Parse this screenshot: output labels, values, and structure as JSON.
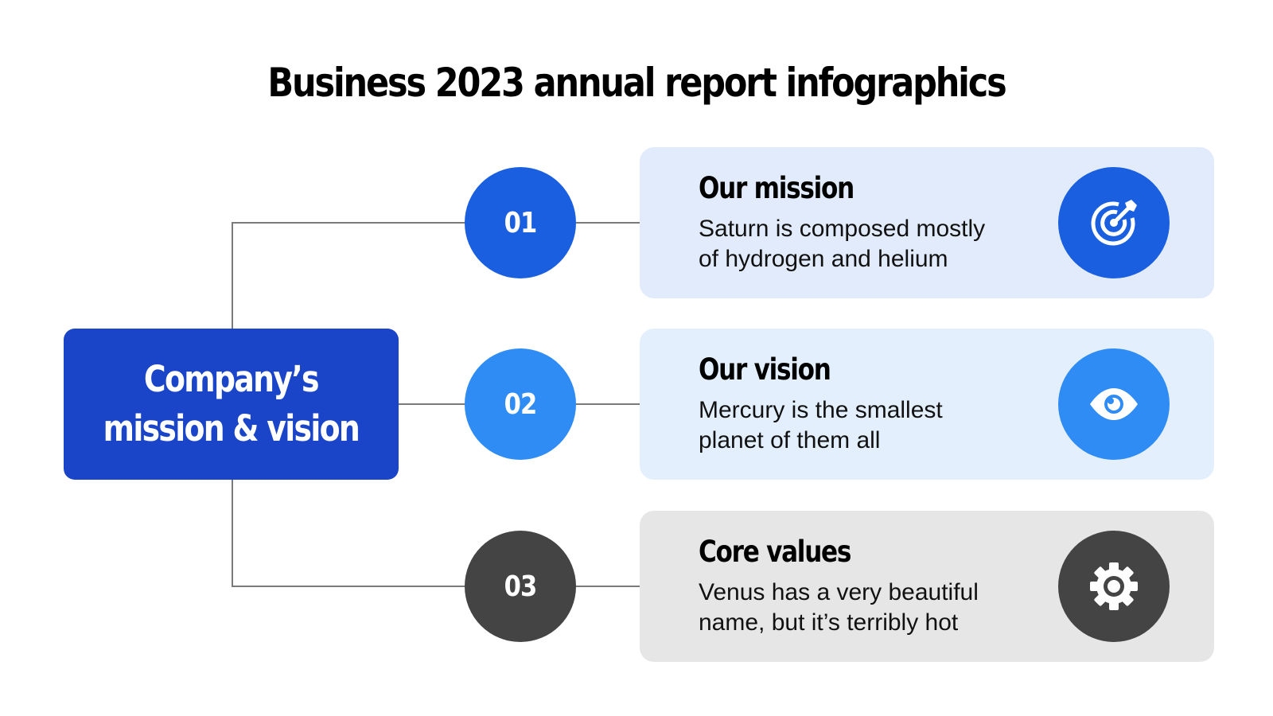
{
  "title": "Business 2023 annual report infographics",
  "hub": {
    "label": "Company’s\nmission & vision"
  },
  "items": [
    {
      "number": "01",
      "heading": "Our mission",
      "text": "Saturn is composed mostly\nof hydrogen and helium",
      "icon": "target-icon",
      "circle_color": "#1a5fe0",
      "card_color": "#e1ebfb"
    },
    {
      "number": "02",
      "heading": "Our vision",
      "text": "Mercury is the smallest\nplanet of them all",
      "icon": "eye-icon",
      "circle_color": "#2f8cf5",
      "card_color": "#e3effd"
    },
    {
      "number": "03",
      "heading": "Core values",
      "text": "Venus has a very beautiful\nname, but it’s terribly hot",
      "icon": "gear-icon",
      "circle_color": "#444444",
      "card_color": "#e6e6e6"
    }
  ],
  "colors": {
    "hub": "#1a45c9",
    "connector": "#7a7a7a"
  }
}
